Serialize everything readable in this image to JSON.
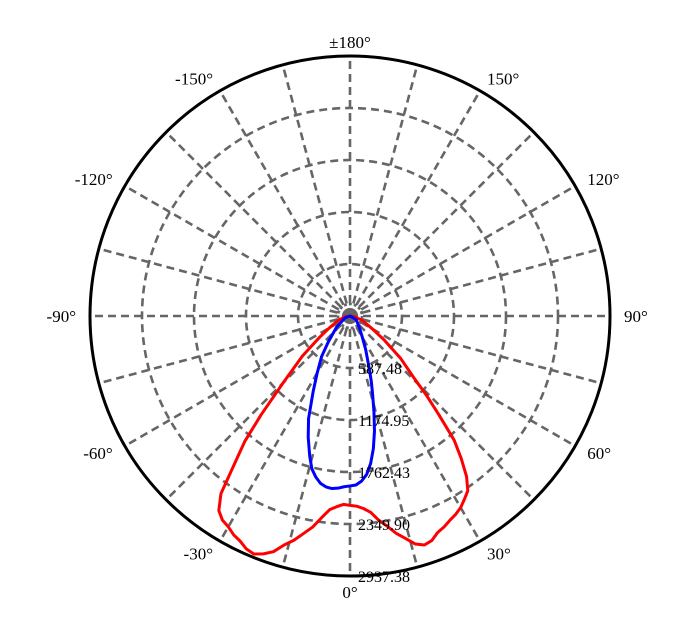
{
  "chart_data": {
    "type": "polar",
    "angle_labels": [
      {
        "angle": 0,
        "text": "0°"
      },
      {
        "angle": 30,
        "text": "30°"
      },
      {
        "angle": 60,
        "text": "60°"
      },
      {
        "angle": 90,
        "text": "90°"
      },
      {
        "angle": 120,
        "text": "120°"
      },
      {
        "angle": 150,
        "text": "150°"
      },
      {
        "angle": 180,
        "text": "±180°"
      },
      {
        "angle": -150,
        "text": "-150°"
      },
      {
        "angle": -120,
        "text": "-120°"
      },
      {
        "angle": -90,
        "text": "-90°"
      },
      {
        "angle": -60,
        "text": "-60°"
      },
      {
        "angle": -30,
        "text": "-30°"
      }
    ],
    "radial_ticks": [
      587.48,
      1174.95,
      1762.43,
      2349.9,
      2937.38
    ],
    "radial_tick_labels": [
      "587.48",
      "1174.95",
      "1762.43",
      "2349.90",
      "2937.38"
    ],
    "r_max": 2937.38,
    "angular_grid_step": 15,
    "grid": true,
    "colors": {
      "series_red": "#ff0000",
      "series_blue": "#0000ff",
      "grid": "#666666",
      "frame": "#000000"
    },
    "series": [
      {
        "color": "#ff0000",
        "points": [
          [
            -90,
            0
          ],
          [
            -80,
            60
          ],
          [
            -70,
            140
          ],
          [
            -60,
            270
          ],
          [
            -55,
            420
          ],
          [
            -50,
            700
          ],
          [
            -45,
            1070
          ],
          [
            -42,
            1500
          ],
          [
            -40,
            1850
          ],
          [
            -38,
            2120
          ],
          [
            -36,
            2480
          ],
          [
            -34,
            2650
          ],
          [
            -32,
            2720
          ],
          [
            -30,
            2750
          ],
          [
            -28,
            2800
          ],
          [
            -26,
            2830
          ],
          [
            -24,
            2880
          ],
          [
            -22,
            2900
          ],
          [
            -20,
            2860
          ],
          [
            -18,
            2800
          ],
          [
            -16,
            2690
          ],
          [
            -14,
            2610
          ],
          [
            -12,
            2510
          ],
          [
            -10,
            2420
          ],
          [
            -8,
            2300
          ],
          [
            -6,
            2200
          ],
          [
            -4,
            2160
          ],
          [
            -2,
            2130
          ],
          [
            0,
            2140
          ],
          [
            2,
            2150
          ],
          [
            4,
            2180
          ],
          [
            6,
            2230
          ],
          [
            8,
            2330
          ],
          [
            10,
            2410
          ],
          [
            12,
            2510
          ],
          [
            14,
            2590
          ],
          [
            16,
            2680
          ],
          [
            18,
            2720
          ],
          [
            20,
            2700
          ],
          [
            22,
            2640
          ],
          [
            24,
            2610
          ],
          [
            26,
            2570
          ],
          [
            28,
            2540
          ],
          [
            30,
            2500
          ],
          [
            32,
            2440
          ],
          [
            34,
            2380
          ],
          [
            36,
            2240
          ],
          [
            38,
            2040
          ],
          [
            40,
            1830
          ],
          [
            42,
            1500
          ],
          [
            44,
            1240
          ],
          [
            46,
            1000
          ],
          [
            50,
            750
          ],
          [
            55,
            470
          ],
          [
            60,
            290
          ],
          [
            70,
            150
          ],
          [
            80,
            60
          ],
          [
            90,
            0
          ]
        ]
      },
      {
        "color": "#0000ff",
        "points": [
          [
            -90,
            0
          ],
          [
            -70,
            60
          ],
          [
            -50,
            200
          ],
          [
            -40,
            380
          ],
          [
            -35,
            560
          ],
          [
            -30,
            740
          ],
          [
            -26,
            950
          ],
          [
            -22,
            1250
          ],
          [
            -19,
            1450
          ],
          [
            -16,
            1650
          ],
          [
            -14,
            1780
          ],
          [
            -12,
            1860
          ],
          [
            -10,
            1920
          ],
          [
            -8,
            1950
          ],
          [
            -6,
            1960
          ],
          [
            -4,
            1950
          ],
          [
            -2,
            1930
          ],
          [
            0,
            1920
          ],
          [
            2,
            1910
          ],
          [
            4,
            1870
          ],
          [
            6,
            1800
          ],
          [
            8,
            1680
          ],
          [
            10,
            1520
          ],
          [
            12,
            1330
          ],
          [
            14,
            1120
          ],
          [
            16,
            930
          ],
          [
            18,
            780
          ],
          [
            20,
            640
          ],
          [
            25,
            420
          ],
          [
            30,
            280
          ],
          [
            40,
            160
          ],
          [
            60,
            80
          ],
          [
            90,
            0
          ]
        ]
      }
    ]
  }
}
